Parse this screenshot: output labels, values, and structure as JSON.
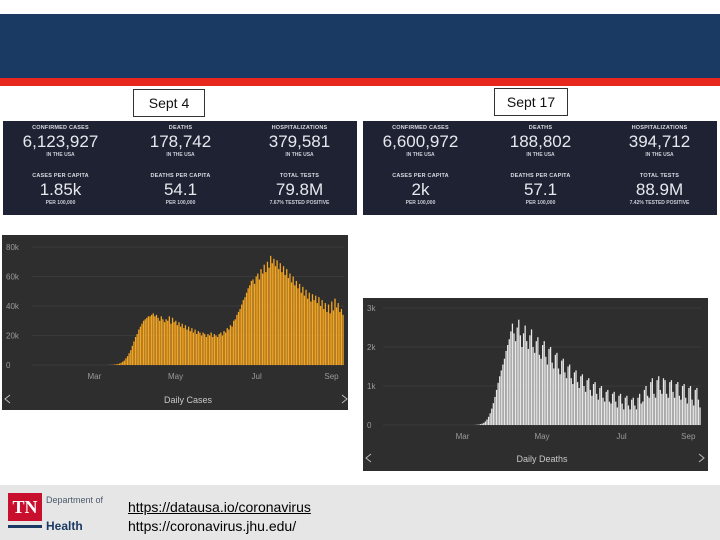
{
  "dates": {
    "left": "Sept 4",
    "right": "Sept 17"
  },
  "left_stats": [
    {
      "label": "CONFIRMED CASES",
      "value": "6,123,927",
      "sub": "IN THE USA"
    },
    {
      "label": "DEATHS",
      "value": "178,742",
      "sub": "IN THE USA"
    },
    {
      "label": "HOSPITALIZATIONS",
      "value": "379,581",
      "sub": "IN THE USA"
    },
    {
      "label": "CASES PER CAPITA",
      "value": "1.85k",
      "sub": "PER 100,000"
    },
    {
      "label": "DEATHS PER CAPITA",
      "value": "54.1",
      "sub": "PER 100,000"
    },
    {
      "label": "TOTAL TESTS",
      "value": "79.8M",
      "sub": "7.67% TESTED POSITIVE"
    }
  ],
  "right_stats": [
    {
      "label": "CONFIRMED CASES",
      "value": "6,600,972",
      "sub": "IN THE USA"
    },
    {
      "label": "DEATHS",
      "value": "188,802",
      "sub": "IN THE USA"
    },
    {
      "label": "HOSPITALIZATIONS",
      "value": "394,712",
      "sub": "IN THE USA"
    },
    {
      "label": "CASES PER CAPITA",
      "value": "2k",
      "sub": "PER 100,000"
    },
    {
      "label": "DEATHS PER CAPITA",
      "value": "57.1",
      "sub": "PER 100,000"
    },
    {
      "label": "TOTAL TESTS",
      "value": "88.9M",
      "sub": "7.42% TESTED POSITIVE"
    }
  ],
  "chart_data": [
    {
      "type": "bar",
      "title": "Daily Cases",
      "color": "#f5a623",
      "y_ticks": [
        "80k",
        "60k",
        "40k",
        "20k",
        "0"
      ],
      "x_ticks": [
        "Mar",
        "May",
        "Jul",
        "Sep"
      ],
      "ylim": [
        0,
        80000
      ],
      "values": [
        0,
        0,
        0,
        0,
        0,
        0,
        0,
        0,
        0,
        0,
        0,
        0,
        0,
        0,
        0,
        0,
        0,
        0,
        0,
        0,
        0,
        0,
        0,
        0,
        0,
        0,
        0,
        0,
        0,
        0,
        0,
        0,
        0,
        0,
        0,
        0,
        0,
        0,
        0,
        0,
        0,
        0,
        0,
        0,
        0,
        0,
        0,
        50,
        80,
        120,
        200,
        300,
        450,
        700,
        1000,
        1500,
        2200,
        3000,
        4500,
        6000,
        8000,
        10000,
        13000,
        16000,
        19000,
        21000,
        24000,
        26000,
        28000,
        30000,
        31000,
        32000,
        33000,
        33000,
        34000,
        35000,
        33000,
        34000,
        32000,
        30000,
        33000,
        31000,
        29000,
        31000,
        30000,
        33000,
        28000,
        32000,
        29000,
        30000,
        27000,
        29000,
        26000,
        28000,
        25000,
        27000,
        24000,
        26000,
        23000,
        25000,
        22000,
        24000,
        21000,
        23000,
        22000,
        20000,
        22000,
        21000,
        19000,
        21000,
        20000,
        22000,
        19000,
        21000,
        20000,
        19000,
        21000,
        22000,
        20000,
        23000,
        22000,
        25000,
        24000,
        27000,
        26000,
        30000,
        31000,
        34000,
        36000,
        38000,
        41000,
        44000,
        46000,
        49000,
        52000,
        54000,
        57000,
        58000,
        55000,
        60000,
        62000,
        58000,
        65000,
        62000,
        68000,
        63000,
        70000,
        66000,
        74000,
        69000,
        72000,
        67000,
        71000,
        65000,
        69000,
        63000,
        67000,
        61000,
        65000,
        59000,
        62000,
        56000,
        60000,
        54000,
        57000,
        52000,
        55000,
        49000,
        53000,
        47000,
        51000,
        45000,
        49000,
        43000,
        48000,
        44000,
        47000,
        42000,
        46000,
        40000,
        44000,
        38000,
        42000,
        36000,
        41000,
        35000,
        43000,
        37000,
        45000,
        39000,
        42000,
        36000,
        38000,
        34000
      ]
    },
    {
      "type": "bar",
      "title": "Daily Deaths",
      "color": "#e8e8e8",
      "y_ticks": [
        "3k",
        "2k",
        "1k",
        "0"
      ],
      "x_ticks": [
        "Mar",
        "May",
        "Jul",
        "Sep"
      ],
      "ylim": [
        0,
        3000
      ],
      "values": [
        0,
        0,
        0,
        0,
        0,
        0,
        0,
        0,
        0,
        0,
        0,
        0,
        0,
        0,
        0,
        0,
        0,
        0,
        0,
        0,
        0,
        0,
        0,
        0,
        0,
        0,
        0,
        0,
        0,
        0,
        0,
        0,
        0,
        0,
        0,
        0,
        0,
        0,
        0,
        0,
        0,
        0,
        0,
        0,
        0,
        0,
        0,
        0,
        0,
        0,
        0,
        0,
        0,
        0,
        0,
        0,
        0,
        2,
        4,
        8,
        14,
        22,
        35,
        55,
        90,
        140,
        210,
        300,
        420,
        560,
        720,
        900,
        1080,
        1250,
        1400,
        1550,
        1700,
        1900,
        2050,
        2200,
        2400,
        2600,
        2350,
        2150,
        2500,
        2700,
        2300,
        2000,
        2350,
        2550,
        2150,
        1950,
        2300,
        2450,
        2000,
        1850,
        2150,
        2250,
        1800,
        1700,
        2050,
        2150,
        1750,
        1550,
        1950,
        2000,
        1600,
        1450,
        1800,
        1850,
        1450,
        1300,
        1650,
        1700,
        1350,
        1200,
        1500,
        1550,
        1200,
        1050,
        1350,
        1400,
        1100,
        950,
        1250,
        1300,
        1000,
        850,
        1150,
        1200,
        900,
        750,
        1050,
        1100,
        800,
        650,
        950,
        1000,
        700,
        600,
        850,
        900,
        600,
        550,
        800,
        850,
        600,
        450,
        750,
        800,
        550,
        400,
        700,
        750,
        500,
        400,
        650,
        700,
        500,
        400,
        700,
        800,
        550,
        600,
        900,
        1000,
        750,
        700,
        1100,
        1200,
        800,
        700,
        1150,
        1250,
        900,
        800,
        1200,
        1150,
        800,
        700,
        1100,
        1150,
        850,
        700,
        1050,
        1100,
        750,
        650,
        1000,
        1050,
        700,
        550,
        950,
        1000,
        650,
        500,
        900,
        950,
        650,
        450
      ]
    }
  ],
  "footer": {
    "logo_tn": "TN",
    "logo_dept_line1": "Department of",
    "logo_health": "Health",
    "link1": "https://datausa.io/coronavirus",
    "link2": "https://coronavirus.jhu.edu/"
  }
}
